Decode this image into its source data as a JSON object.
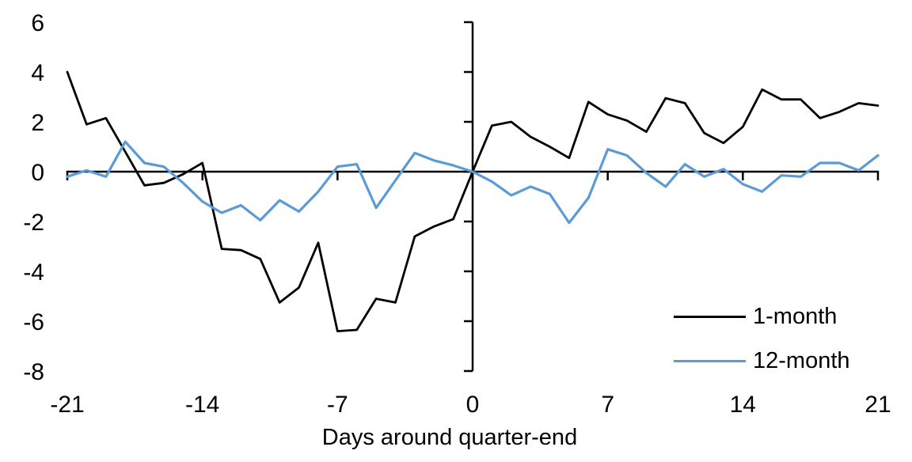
{
  "chart_data": {
    "type": "line",
    "title": "",
    "xlabel": "Days around quarter-end",
    "ylabel": "",
    "xlim": [
      -21,
      21
    ],
    "ylim": [
      -8,
      6
    ],
    "grid": false,
    "legend_position": "inside-bottom-right",
    "x_ticks": [
      -21,
      -14,
      -7,
      0,
      7,
      14,
      21
    ],
    "y_ticks": [
      6,
      4,
      2,
      0,
      -2,
      -4,
      -6,
      -8
    ],
    "x": [
      -21,
      -20,
      -19,
      -18,
      -17,
      -16,
      -15,
      -14,
      -13,
      -12,
      -11,
      -10,
      -9,
      -8,
      -7,
      -6,
      -5,
      -4,
      -3,
      -2,
      -1,
      0,
      1,
      2,
      3,
      4,
      5,
      6,
      7,
      8,
      9,
      10,
      11,
      12,
      13,
      14,
      15,
      16,
      17,
      18,
      19,
      20,
      21
    ],
    "series": [
      {
        "name": "1-month",
        "color": "#000000",
        "values": [
          4.0,
          1.9,
          2.15,
          0.8,
          -0.55,
          -0.45,
          -0.1,
          0.35,
          -3.1,
          -3.15,
          -3.5,
          -5.25,
          -4.65,
          -2.85,
          -6.4,
          -6.35,
          -5.1,
          -5.25,
          -2.6,
          -2.2,
          -1.9,
          0.0,
          1.85,
          2.0,
          1.4,
          1.0,
          0.55,
          2.8,
          2.3,
          2.05,
          1.6,
          2.95,
          2.75,
          1.55,
          1.15,
          1.8,
          3.3,
          2.9,
          2.9,
          2.15,
          2.4,
          2.75,
          2.65
        ]
      },
      {
        "name": "12-month",
        "color": "#5B9BD5",
        "values": [
          -0.2,
          0.05,
          -0.2,
          1.2,
          0.35,
          0.2,
          -0.45,
          -1.2,
          -1.65,
          -1.35,
          -1.95,
          -1.15,
          -1.6,
          -0.8,
          0.2,
          0.3,
          -1.45,
          -0.35,
          0.75,
          0.45,
          0.25,
          0.0,
          -0.4,
          -0.95,
          -0.6,
          -0.9,
          -2.05,
          -1.05,
          0.9,
          0.65,
          -0.05,
          -0.6,
          0.3,
          -0.2,
          0.1,
          -0.5,
          -0.8,
          -0.15,
          -0.2,
          0.35,
          0.35,
          0.05,
          0.65
        ]
      }
    ]
  }
}
